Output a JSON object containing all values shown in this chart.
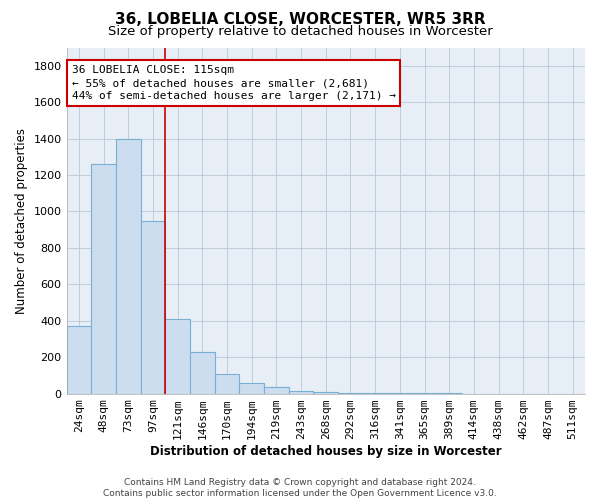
{
  "title": "36, LOBELIA CLOSE, WORCESTER, WR5 3RR",
  "subtitle": "Size of property relative to detached houses in Worcester",
  "xlabel": "Distribution of detached houses by size in Worcester",
  "ylabel": "Number of detached properties",
  "footer_line1": "Contains HM Land Registry data © Crown copyright and database right 2024.",
  "footer_line2": "Contains public sector information licensed under the Open Government Licence v3.0.",
  "categories": [
    "24sqm",
    "48sqm",
    "73sqm",
    "97sqm",
    "121sqm",
    "146sqm",
    "170sqm",
    "194sqm",
    "219sqm",
    "243sqm",
    "268sqm",
    "292sqm",
    "316sqm",
    "341sqm",
    "365sqm",
    "389sqm",
    "414sqm",
    "438sqm",
    "462sqm",
    "487sqm",
    "511sqm"
  ],
  "values": [
    370,
    1260,
    1400,
    950,
    410,
    230,
    110,
    60,
    35,
    15,
    10,
    5,
    3,
    2,
    1,
    1,
    0,
    0,
    0,
    0,
    0
  ],
  "bar_color": "#ccddf0",
  "bar_edge_color": "#7aafd4",
  "vline_x_index": 3.5,
  "vline_color": "#cc0000",
  "annotation_line1": "36 LOBELIA CLOSE: 115sqm",
  "annotation_line2": "← 55% of detached houses are smaller (2,681)",
  "annotation_line3": "44% of semi-detached houses are larger (2,171) →",
  "annotation_box_facecolor": "#ffffff",
  "annotation_box_edgecolor": "#cc0000",
  "plot_bg_color": "#e8eef5",
  "ylim": [
    0,
    1900
  ],
  "yticks": [
    0,
    200,
    400,
    600,
    800,
    1000,
    1200,
    1400,
    1600,
    1800
  ],
  "grid_color": "#b8c8d8",
  "bg_color": "#ffffff",
  "title_fontsize": 11,
  "subtitle_fontsize": 9.5,
  "axis_label_fontsize": 8.5,
  "tick_fontsize": 8,
  "annotation_fontsize": 8,
  "footer_fontsize": 6.5
}
